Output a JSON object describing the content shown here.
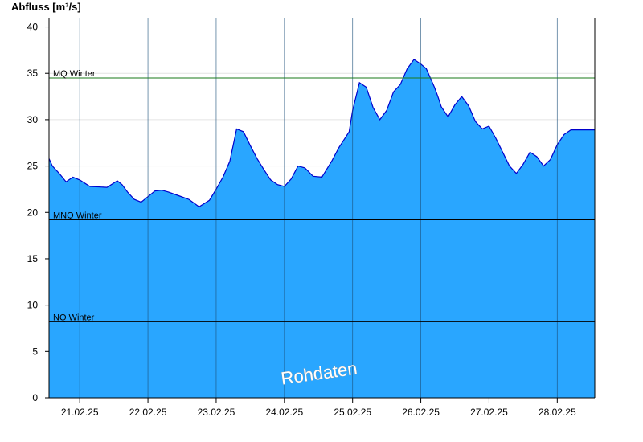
{
  "chart_data": {
    "type": "area",
    "ylabel": "Abfluss [m³/s]",
    "ylim": [
      0,
      41
    ],
    "yticks": [
      0,
      5,
      10,
      15,
      20,
      25,
      30,
      35,
      40
    ],
    "x_range_days": [
      20.55,
      28.55
    ],
    "categories": [
      "21.02.25",
      "22.02.25",
      "23.02.25",
      "24.02.25",
      "25.02.25",
      "26.02.25",
      "27.02.25",
      "28.02.25"
    ],
    "grid": "horizontal-light",
    "series": [
      {
        "color": "#29a6ff",
        "line_color": "#0000cc",
        "x": [
          20.55,
          20.6,
          20.7,
          20.8,
          20.9,
          21.0,
          21.15,
          21.4,
          21.55,
          21.62,
          21.7,
          21.8,
          21.9,
          22.0,
          22.1,
          22.2,
          22.3,
          22.45,
          22.6,
          22.75,
          22.9,
          23.0,
          23.1,
          23.2,
          23.3,
          23.4,
          23.5,
          23.6,
          23.7,
          23.8,
          23.9,
          24.0,
          24.1,
          24.2,
          24.3,
          24.42,
          24.55,
          24.7,
          24.8,
          24.95,
          25.0,
          25.1,
          25.2,
          25.3,
          25.4,
          25.5,
          25.6,
          25.7,
          25.8,
          25.9,
          26.0,
          26.08,
          26.2,
          26.25,
          26.3,
          26.4,
          26.5,
          26.6,
          26.7,
          26.8,
          26.9,
          27.0,
          27.1,
          27.2,
          27.3,
          27.4,
          27.5,
          27.6,
          27.7,
          27.8,
          27.9,
          28.0,
          28.1,
          28.2,
          28.3,
          28.4,
          28.5,
          28.55
        ],
        "values": [
          25.8,
          25.0,
          24.2,
          23.3,
          23.8,
          23.5,
          22.8,
          22.7,
          23.4,
          23.0,
          22.2,
          21.4,
          21.1,
          21.7,
          22.3,
          22.4,
          22.2,
          21.8,
          21.4,
          20.6,
          21.3,
          22.5,
          23.8,
          25.5,
          29.0,
          28.7,
          27.2,
          25.8,
          24.6,
          23.5,
          23.0,
          22.8,
          23.6,
          25.0,
          24.8,
          23.9,
          23.8,
          25.6,
          27.0,
          28.7,
          31.0,
          34.0,
          33.5,
          31.3,
          30.0,
          31.0,
          33.0,
          33.8,
          35.5,
          36.5,
          36.0,
          35.5,
          33.5,
          32.5,
          31.4,
          30.3,
          31.6,
          32.5,
          31.5,
          29.8,
          29.0,
          29.3,
          28.0,
          26.5,
          25.0,
          24.2,
          25.2,
          26.5,
          26.0,
          25.0,
          25.7,
          27.3,
          28.4,
          28.9,
          28.9,
          28.9,
          28.9,
          28.9
        ]
      }
    ],
    "reference_lines": [
      {
        "label": "MQ Winter",
        "value": 34.5,
        "color": "#1a7a1a"
      },
      {
        "label": "MNQ Winter",
        "value": 19.2,
        "color": "#000000"
      },
      {
        "label": "NQ Winter",
        "value": 8.2,
        "color": "#000000"
      }
    ],
    "watermark": "Rohdaten"
  }
}
